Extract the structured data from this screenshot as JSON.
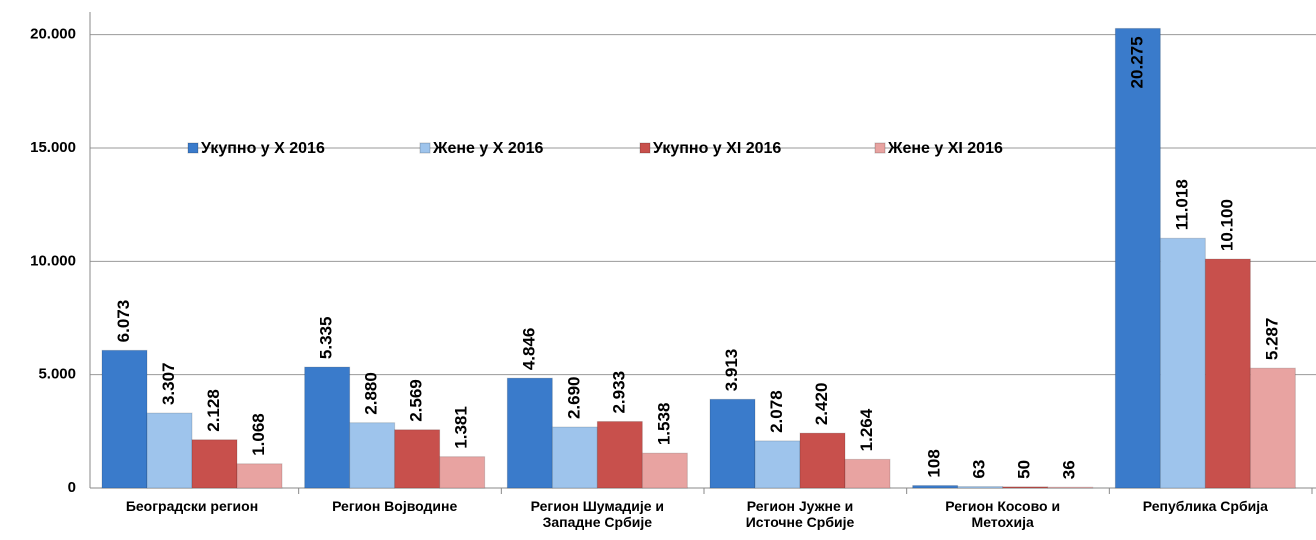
{
  "chart_data": {
    "type": "bar",
    "categories": [
      "Београдски регион",
      "Регион Војводине",
      "Регион Шумадије и\nЗападне Србије",
      "Регион Јужне и\nИсточне Србије",
      "Регион Косово и\nМетохија",
      "Република Србија"
    ],
    "series": [
      {
        "name": "Укупно у X 2016",
        "color": "#3a7bcb",
        "values": [
          6073,
          5335,
          4846,
          3913,
          108,
          20275
        ],
        "value_labels": [
          "6.073",
          "5.335",
          "4.846",
          "3.913",
          "108",
          "20.275"
        ]
      },
      {
        "name": "Жене у X 2016",
        "color": "#9ec4ec",
        "values": [
          3307,
          2880,
          2690,
          2078,
          63,
          11018
        ],
        "value_labels": [
          "3.307",
          "2.880",
          "2.690",
          "2.078",
          "63",
          "11.018"
        ]
      },
      {
        "name": "Укупно у XI 2016",
        "color": "#c8504c",
        "values": [
          2128,
          2569,
          2933,
          2420,
          50,
          10100
        ],
        "value_labels": [
          "2.128",
          "2.569",
          "2.933",
          "2.420",
          "50",
          "10.100"
        ]
      },
      {
        "name": "Жене у XI 2016",
        "color": "#e8a3a1",
        "values": [
          1068,
          1381,
          1538,
          1264,
          36,
          5287
        ],
        "value_labels": [
          "1.068",
          "1.381",
          "1.538",
          "1.264",
          "36",
          "5.287"
        ]
      }
    ],
    "ylim": [
      0,
      21000
    ],
    "yticks": [
      0,
      {
        "value": 5000,
        "label": "5.000"
      },
      {
        "value": 10000,
        "label": "10.000"
      },
      {
        "value": 15000,
        "label": "15.000"
      },
      {
        "value": 20000,
        "label": "20.000"
      }
    ],
    "grid": true,
    "legend": "top"
  }
}
